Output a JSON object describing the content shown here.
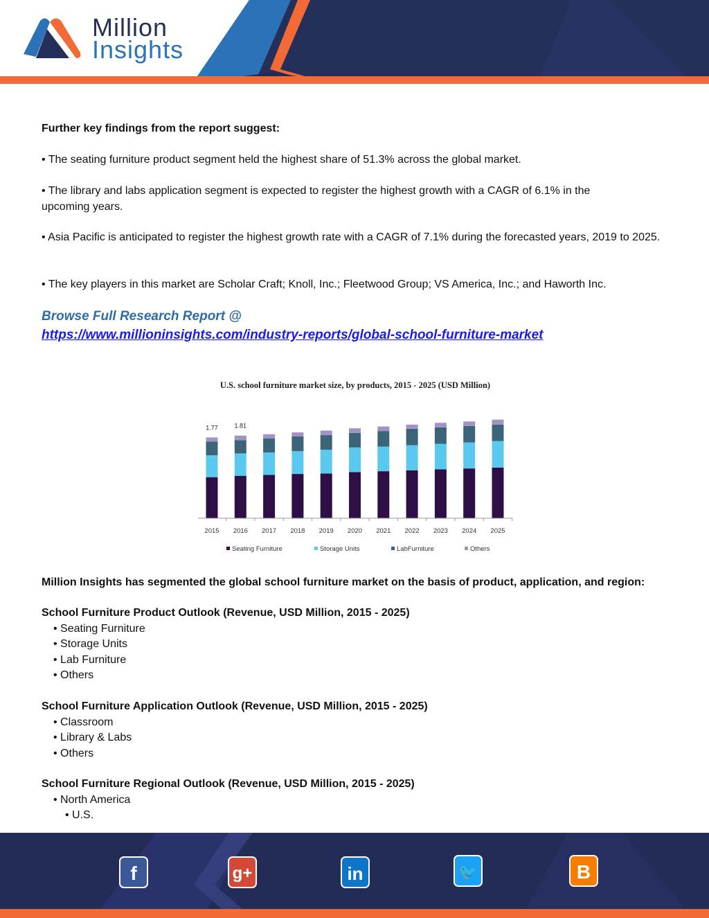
{
  "header": {
    "logo_line1": "Million",
    "logo_line2": "Insights"
  },
  "findings": {
    "heading": "Further key findings from the report suggest:",
    "bullets": [
      "• The seating furniture product segment held the highest share of 51.3% across the global market.",
      "• The library and labs application segment is expected to register the highest growth with a CAGR of 6.1% in the upcoming years.",
      "• Asia Pacific is anticipated to register the highest growth rate with a CAGR of 7.1% during the forecasted years, 2019 to 2025.",
      "• The key players in this market are Scholar Craft; Knoll, Inc.; Fleetwood Group; VS America, Inc.; and Haworth Inc."
    ]
  },
  "browse": {
    "label": "Browse Full Research Report @",
    "url": "https://www.millioninsights.com/industry-reports/global-school-furniture-market"
  },
  "chart_data": {
    "type": "bar",
    "stacked": true,
    "title": "U.S. school furniture market size, by products, 2015 - 2025 (USD Million)",
    "categories": [
      "2015",
      "2016",
      "2017",
      "2018",
      "2019",
      "2020",
      "2021",
      "2022",
      "2023",
      "2024",
      "2025"
    ],
    "series": [
      {
        "name": "Seating Furniture",
        "color": "#2d0f45",
        "values": [
          0.9,
          0.93,
          0.95,
          0.97,
          0.98,
          1.01,
          1.03,
          1.05,
          1.07,
          1.09,
          1.11
        ]
      },
      {
        "name": "Storage Units",
        "color": "#5bc8f0",
        "values": [
          0.48,
          0.49,
          0.49,
          0.5,
          0.52,
          0.54,
          0.54,
          0.55,
          0.56,
          0.57,
          0.58
        ]
      },
      {
        "name": "LabFurniture",
        "color": "#3b6479",
        "values": [
          0.3,
          0.29,
          0.31,
          0.32,
          0.32,
          0.32,
          0.34,
          0.36,
          0.36,
          0.36,
          0.36
        ]
      },
      {
        "name": "Others",
        "color": "#a393c5",
        "values": [
          0.09,
          0.1,
          0.09,
          0.09,
          0.1,
          0.1,
          0.1,
          0.09,
          0.1,
          0.1,
          0.11
        ]
      }
    ],
    "data_labels": [
      {
        "category": "2015",
        "text": "1.77"
      },
      {
        "category": "2016",
        "text": "1.81"
      }
    ],
    "ylim": [
      0,
      2.3
    ],
    "grid": false,
    "legend": "bottom"
  },
  "segmentation": {
    "intro": "Million Insights has segmented the global school furniture market on the basis of product, application, and region:",
    "product": {
      "heading": "School Furniture Product Outlook (Revenue, USD Million, 2015 - 2025)",
      "items": [
        "• Seating Furniture",
        "• Storage Units",
        "• Lab Furniture",
        "• Others"
      ]
    },
    "application": {
      "heading": "School Furniture Application Outlook (Revenue, USD Million, 2015 - 2025)",
      "items": [
        "• Classroom",
        "• Library & Labs",
        "• Others"
      ]
    },
    "region": {
      "heading": "School Furniture Regional Outlook (Revenue, USD Million, 2015 - 2025)",
      "items": [
        "• North America"
      ],
      "subitems": [
        "• U.S."
      ]
    }
  },
  "footer": {
    "social": [
      {
        "name": "facebook",
        "glyph": "f",
        "color": "#3b5998"
      },
      {
        "name": "google-plus",
        "glyph": "g+",
        "color": "#d34836"
      },
      {
        "name": "linkedin",
        "glyph": "in",
        "color": "#0e76c8"
      },
      {
        "name": "twitter",
        "glyph": "🐦",
        "color": "#1da1f2"
      },
      {
        "name": "blogger",
        "glyph": "B",
        "color": "#f57d00"
      }
    ]
  }
}
